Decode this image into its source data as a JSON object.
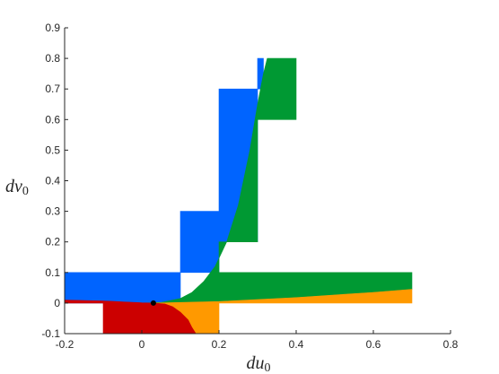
{
  "chart_data": {
    "type": "area",
    "title": "",
    "xlabel": "du",
    "xlabel_sub": "0",
    "ylabel": "dv",
    "ylabel_sub": "0",
    "xlim": [
      -0.2,
      0.8
    ],
    "ylim": [
      -0.1,
      0.9
    ],
    "x_ticks": [
      "-0.2",
      "0",
      "0.2",
      "0.4",
      "0.6",
      "0.8"
    ],
    "x_tick_values": [
      -0.2,
      0,
      0.2,
      0.4,
      0.6,
      0.8
    ],
    "y_ticks": [
      "-0.1",
      "0",
      "0.1",
      "0.2",
      "0.3",
      "0.4",
      "0.5",
      "0.6",
      "0.7",
      "0.8",
      "0.9"
    ],
    "y_tick_values": [
      -0.1,
      0,
      0.1,
      0.2,
      0.3,
      0.4,
      0.5,
      0.6,
      0.7,
      0.8,
      0.9
    ],
    "grid": false,
    "legend": "none",
    "colors": {
      "blue": "#0064ff",
      "green": "#009933",
      "orange": "#ff9900",
      "red": "#cc0000",
      "axis": "#262626"
    },
    "regions": [
      {
        "color": "blue",
        "polygon": [
          [
            -0.2,
            0.0
          ],
          [
            -0.2,
            0.1
          ],
          [
            0.1,
            0.1
          ],
          [
            0.1,
            0.3
          ],
          [
            0.2,
            0.3
          ],
          [
            0.2,
            0.7
          ],
          [
            0.3,
            0.7
          ],
          [
            0.3,
            0.8
          ],
          [
            0.315,
            0.8
          ],
          [
            0.315,
            0.7
          ],
          [
            0.3,
            0.7
          ],
          [
            0.3,
            0.2
          ],
          [
            0.2,
            0.2
          ],
          [
            0.2,
            0.1
          ],
          [
            0.1,
            0.1
          ],
          [
            0.1,
            0.0
          ]
        ]
      },
      {
        "color": "green",
        "polygon": [
          [
            0.0,
            0.0
          ],
          [
            0.05,
            0.002
          ],
          [
            0.1,
            0.015
          ],
          [
            0.13,
            0.035
          ],
          [
            0.16,
            0.07
          ],
          [
            0.19,
            0.12
          ],
          [
            0.22,
            0.2
          ],
          [
            0.25,
            0.32
          ],
          [
            0.28,
            0.5
          ],
          [
            0.3,
            0.65
          ],
          [
            0.315,
            0.75
          ],
          [
            0.325,
            0.8
          ],
          [
            0.4,
            0.8
          ],
          [
            0.4,
            0.6
          ],
          [
            0.3,
            0.6
          ],
          [
            0.3,
            0.2
          ],
          [
            0.2,
            0.2
          ],
          [
            0.2,
            0.1
          ],
          [
            0.7,
            0.1
          ],
          [
            0.7,
            0.045
          ],
          [
            0.6,
            0.035
          ],
          [
            0.5,
            0.026
          ],
          [
            0.4,
            0.018
          ],
          [
            0.3,
            0.011
          ],
          [
            0.2,
            0.005
          ],
          [
            0.1,
            0.001
          ],
          [
            0.03,
            0.0
          ]
        ]
      },
      {
        "color": "orange",
        "polygon": [
          [
            0.03,
            0.0
          ],
          [
            0.2,
            0.005
          ],
          [
            0.4,
            0.018
          ],
          [
            0.6,
            0.035
          ],
          [
            0.7,
            0.045
          ],
          [
            0.7,
            0.0
          ],
          [
            0.2,
            0.0
          ],
          [
            0.2,
            -0.1
          ],
          [
            0.14,
            -0.1
          ],
          [
            0.13,
            -0.08
          ],
          [
            0.12,
            -0.055
          ],
          [
            0.1,
            -0.03
          ],
          [
            0.08,
            -0.012
          ],
          [
            0.06,
            -0.003
          ]
        ]
      },
      {
        "color": "red",
        "polygon": [
          [
            -0.2,
            0.01
          ],
          [
            -0.1,
            0.007
          ],
          [
            -0.05,
            0.004
          ],
          [
            0.0,
            0.001
          ],
          [
            0.03,
            0.0
          ],
          [
            0.06,
            -0.003
          ],
          [
            0.08,
            -0.012
          ],
          [
            0.1,
            -0.03
          ],
          [
            0.12,
            -0.055
          ],
          [
            0.13,
            -0.08
          ],
          [
            0.14,
            -0.1
          ],
          [
            -0.1,
            -0.1
          ],
          [
            -0.1,
            0.0
          ],
          [
            -0.2,
            0.0
          ]
        ]
      }
    ],
    "point": {
      "x": 0.03,
      "y": 0.0,
      "color": "#000000"
    }
  }
}
